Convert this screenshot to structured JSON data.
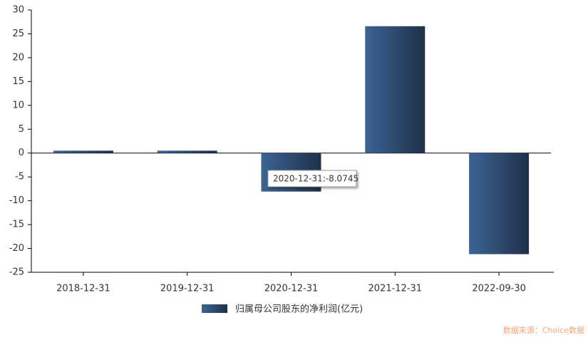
{
  "chart_data": {
    "type": "bar",
    "categories": [
      "2018-12-31",
      "2019-12-31",
      "2020-12-31",
      "2021-12-31",
      "2022-09-30"
    ],
    "series": [
      {
        "name": "归属母公司股东的净利润(亿元)",
        "color": "#2a4468",
        "values": [
          0.5,
          0.5,
          -8.0745,
          26.6,
          -21.2
        ]
      }
    ],
    "ylim": [
      -25,
      30
    ],
    "yticks": [
      -25,
      -20,
      -15,
      -10,
      -5,
      0,
      5,
      10,
      15,
      20,
      25,
      30
    ],
    "tooltip": "2020-12-31:-8.0745",
    "source": "数据来源：Choice数据"
  }
}
